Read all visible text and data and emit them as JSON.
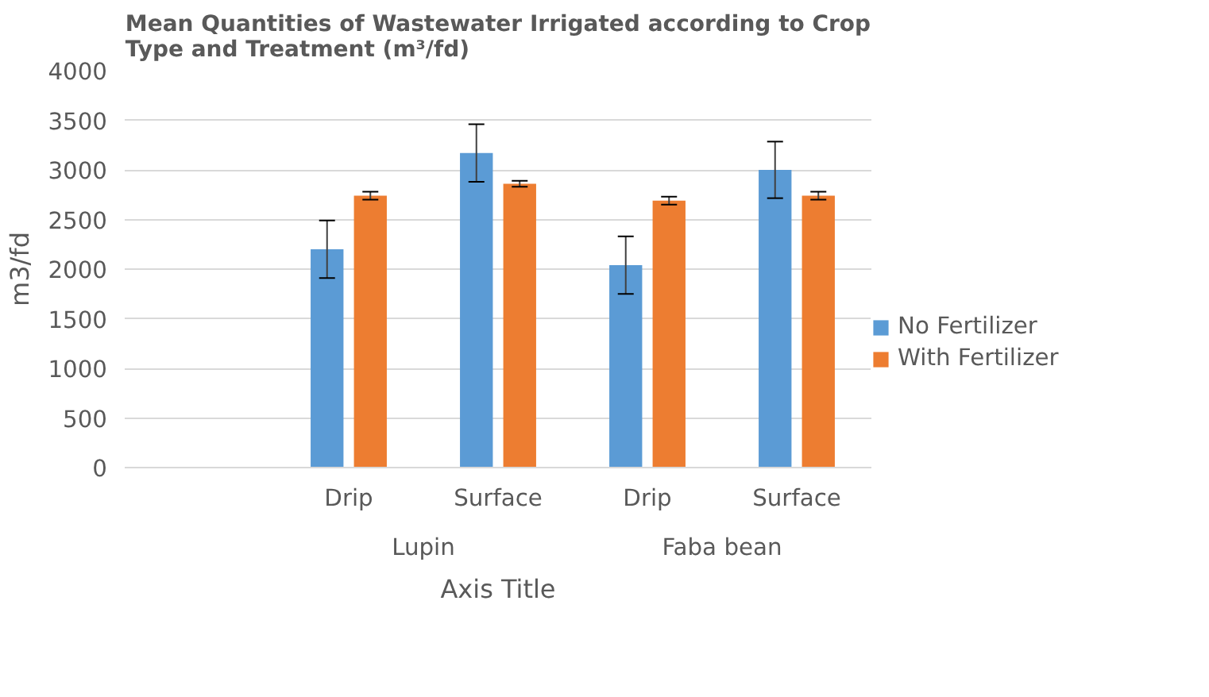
{
  "chart_data": {
    "type": "bar",
    "title": "Mean Quantities of Wastewater Irrigated according to Crop Type and Treatment (m³/fd)",
    "xlabel": "Axis Title",
    "ylabel": "m3/fd",
    "categories": [
      null,
      "Drip",
      "Surface",
      "Drip",
      "Surface"
    ],
    "annotations": [
      "Lupin",
      "Faba bean"
    ],
    "series": [
      {
        "name": "No Fertilizer",
        "color": "#5b9bd5",
        "values": [
          null,
          2200,
          3170,
          2040,
          3000
        ],
        "errors": [
          null,
          290,
          290,
          290,
          285
        ]
      },
      {
        "name": "With Fertilizer",
        "color": "#ed7d31",
        "values": [
          null,
          2740,
          2860,
          2690,
          2740
        ],
        "errors": [
          null,
          40,
          30,
          40,
          40
        ]
      }
    ],
    "ylim": [
      0,
      4000
    ],
    "yticks": [
      0,
      500,
      1000,
      1500,
      2000,
      2500,
      3000,
      3500,
      4000
    ],
    "grid": "y",
    "legend": "right"
  }
}
